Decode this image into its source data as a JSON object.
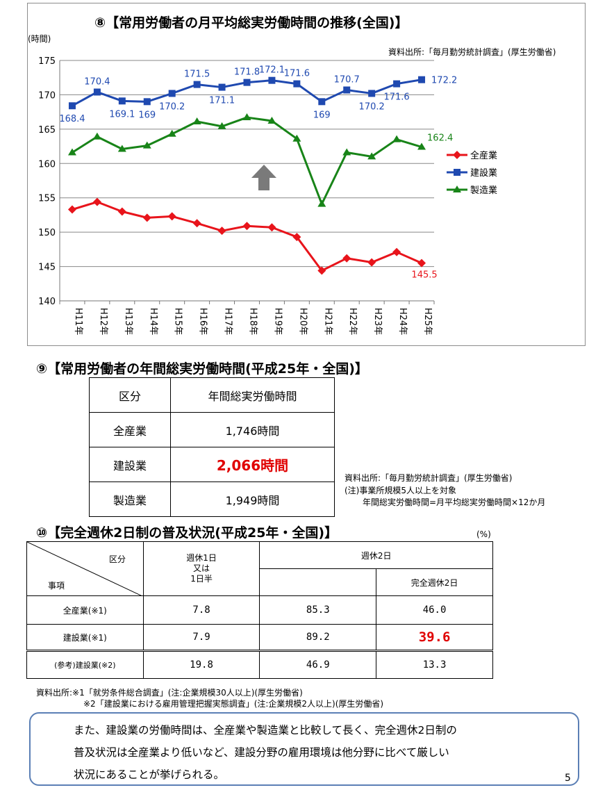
{
  "chart": {
    "title": "⑧【常用労働者の月平均総実労働時間の推移(全国)】",
    "ylabel": "(時間)",
    "source": "資料出所:「毎月勤労統計調査」(厚生労働省)"
  },
  "chart_data": {
    "type": "line",
    "categories": [
      "H11年",
      "H12年",
      "H13年",
      "H14年",
      "H15年",
      "H16年",
      "H17年",
      "H18年",
      "H19年",
      "H20年",
      "H21年",
      "H22年",
      "H23年",
      "H24年",
      "H25年"
    ],
    "series": [
      {
        "name": "全産業",
        "color": "#e8141b",
        "marker": "diamond",
        "values": [
          153.3,
          154.4,
          153.0,
          152.1,
          152.3,
          151.3,
          150.2,
          150.9,
          150.7,
          149.3,
          144.4,
          146.2,
          145.6,
          147.1,
          145.5
        ],
        "labels": [
          null,
          null,
          null,
          null,
          null,
          null,
          null,
          null,
          null,
          null,
          null,
          null,
          null,
          null,
          "145.5"
        ]
      },
      {
        "name": "建設業",
        "color": "#1f49b0",
        "marker": "square",
        "values": [
          168.4,
          170.4,
          169.1,
          169.0,
          170.2,
          171.5,
          171.1,
          171.8,
          172.1,
          171.6,
          169.0,
          170.7,
          170.2,
          171.6,
          172.2
        ],
        "labels": [
          "168.4",
          "170.4",
          "169.1",
          "169",
          "170.2",
          "171.5",
          "171.1",
          "171.8",
          "172.1",
          "171.6",
          "169",
          "170.7",
          "170.2",
          "171.6",
          "172.2"
        ]
      },
      {
        "name": "製造業",
        "color": "#188418",
        "marker": "triangle",
        "values": [
          161.6,
          163.9,
          162.1,
          162.6,
          164.3,
          166.1,
          165.4,
          166.7,
          166.2,
          163.6,
          154.1,
          161.6,
          161.0,
          163.5,
          162.4
        ],
        "labels": [
          null,
          null,
          null,
          null,
          null,
          null,
          null,
          null,
          null,
          null,
          null,
          null,
          null,
          null,
          "162.4"
        ]
      }
    ],
    "ylim": [
      140,
      175
    ],
    "yticks": [
      "140",
      "145",
      "150",
      "155",
      "160",
      "165",
      "170",
      "175"
    ],
    "grid": true,
    "legend": "right"
  },
  "table9": {
    "title": "⑨【常用労働者の年間総実労働時間(平成25年・全国)】",
    "headers": [
      "区分",
      "年間総実労働時間"
    ],
    "rows": [
      [
        "全産業",
        "1,746時間"
      ],
      [
        "建設業",
        "2,066時間"
      ],
      [
        "製造業",
        "1,949時間"
      ]
    ],
    "notes": [
      "資料出所:「毎月勤労統計調査」(厚生労働省)",
      "(注)事業所規模5人以上を対象",
      "年間総実労働時間=月平均総実労働時間×12か月"
    ]
  },
  "table10": {
    "title": "⑩【完全週休2日制の普及状況(平成25年・全国)】",
    "unit": "(%)",
    "header_kubun": "区分",
    "header_jiko": "事項",
    "header_col1": [
      "週休1日",
      "又は",
      "1日半"
    ],
    "header_col2": "週休2日",
    "header_col3": "完全週休2日",
    "rows": [
      {
        "label": "全産業(※1)",
        "v1": "7.8",
        "v2": "85.3",
        "v3": "46.0"
      },
      {
        "label": "建設業(※1)",
        "v1": "7.9",
        "v2": "89.2",
        "v3": "39.6"
      },
      {
        "label": "(参考)建設業(※2)",
        "v1": "19.8",
        "v2": "46.9",
        "v3": "13.3"
      }
    ],
    "notes": [
      "資料出所:※1「就労条件総合調査」(注:企業規模30人以上)(厚生労働省)",
      "※2「建設業における雇用管理把握実態調査」(注:企業規模2人以上)(厚生労働省)"
    ]
  },
  "summary": {
    "lines": [
      "また、建設業の労働時間は、全産業や製造業と比較して長く、完全週休2日制の",
      "普及状況は全産業より低いなど、建設分野の雇用環境は他分野に比べて厳しい",
      "状況にあることが挙げられる。"
    ]
  },
  "page_number": "5"
}
